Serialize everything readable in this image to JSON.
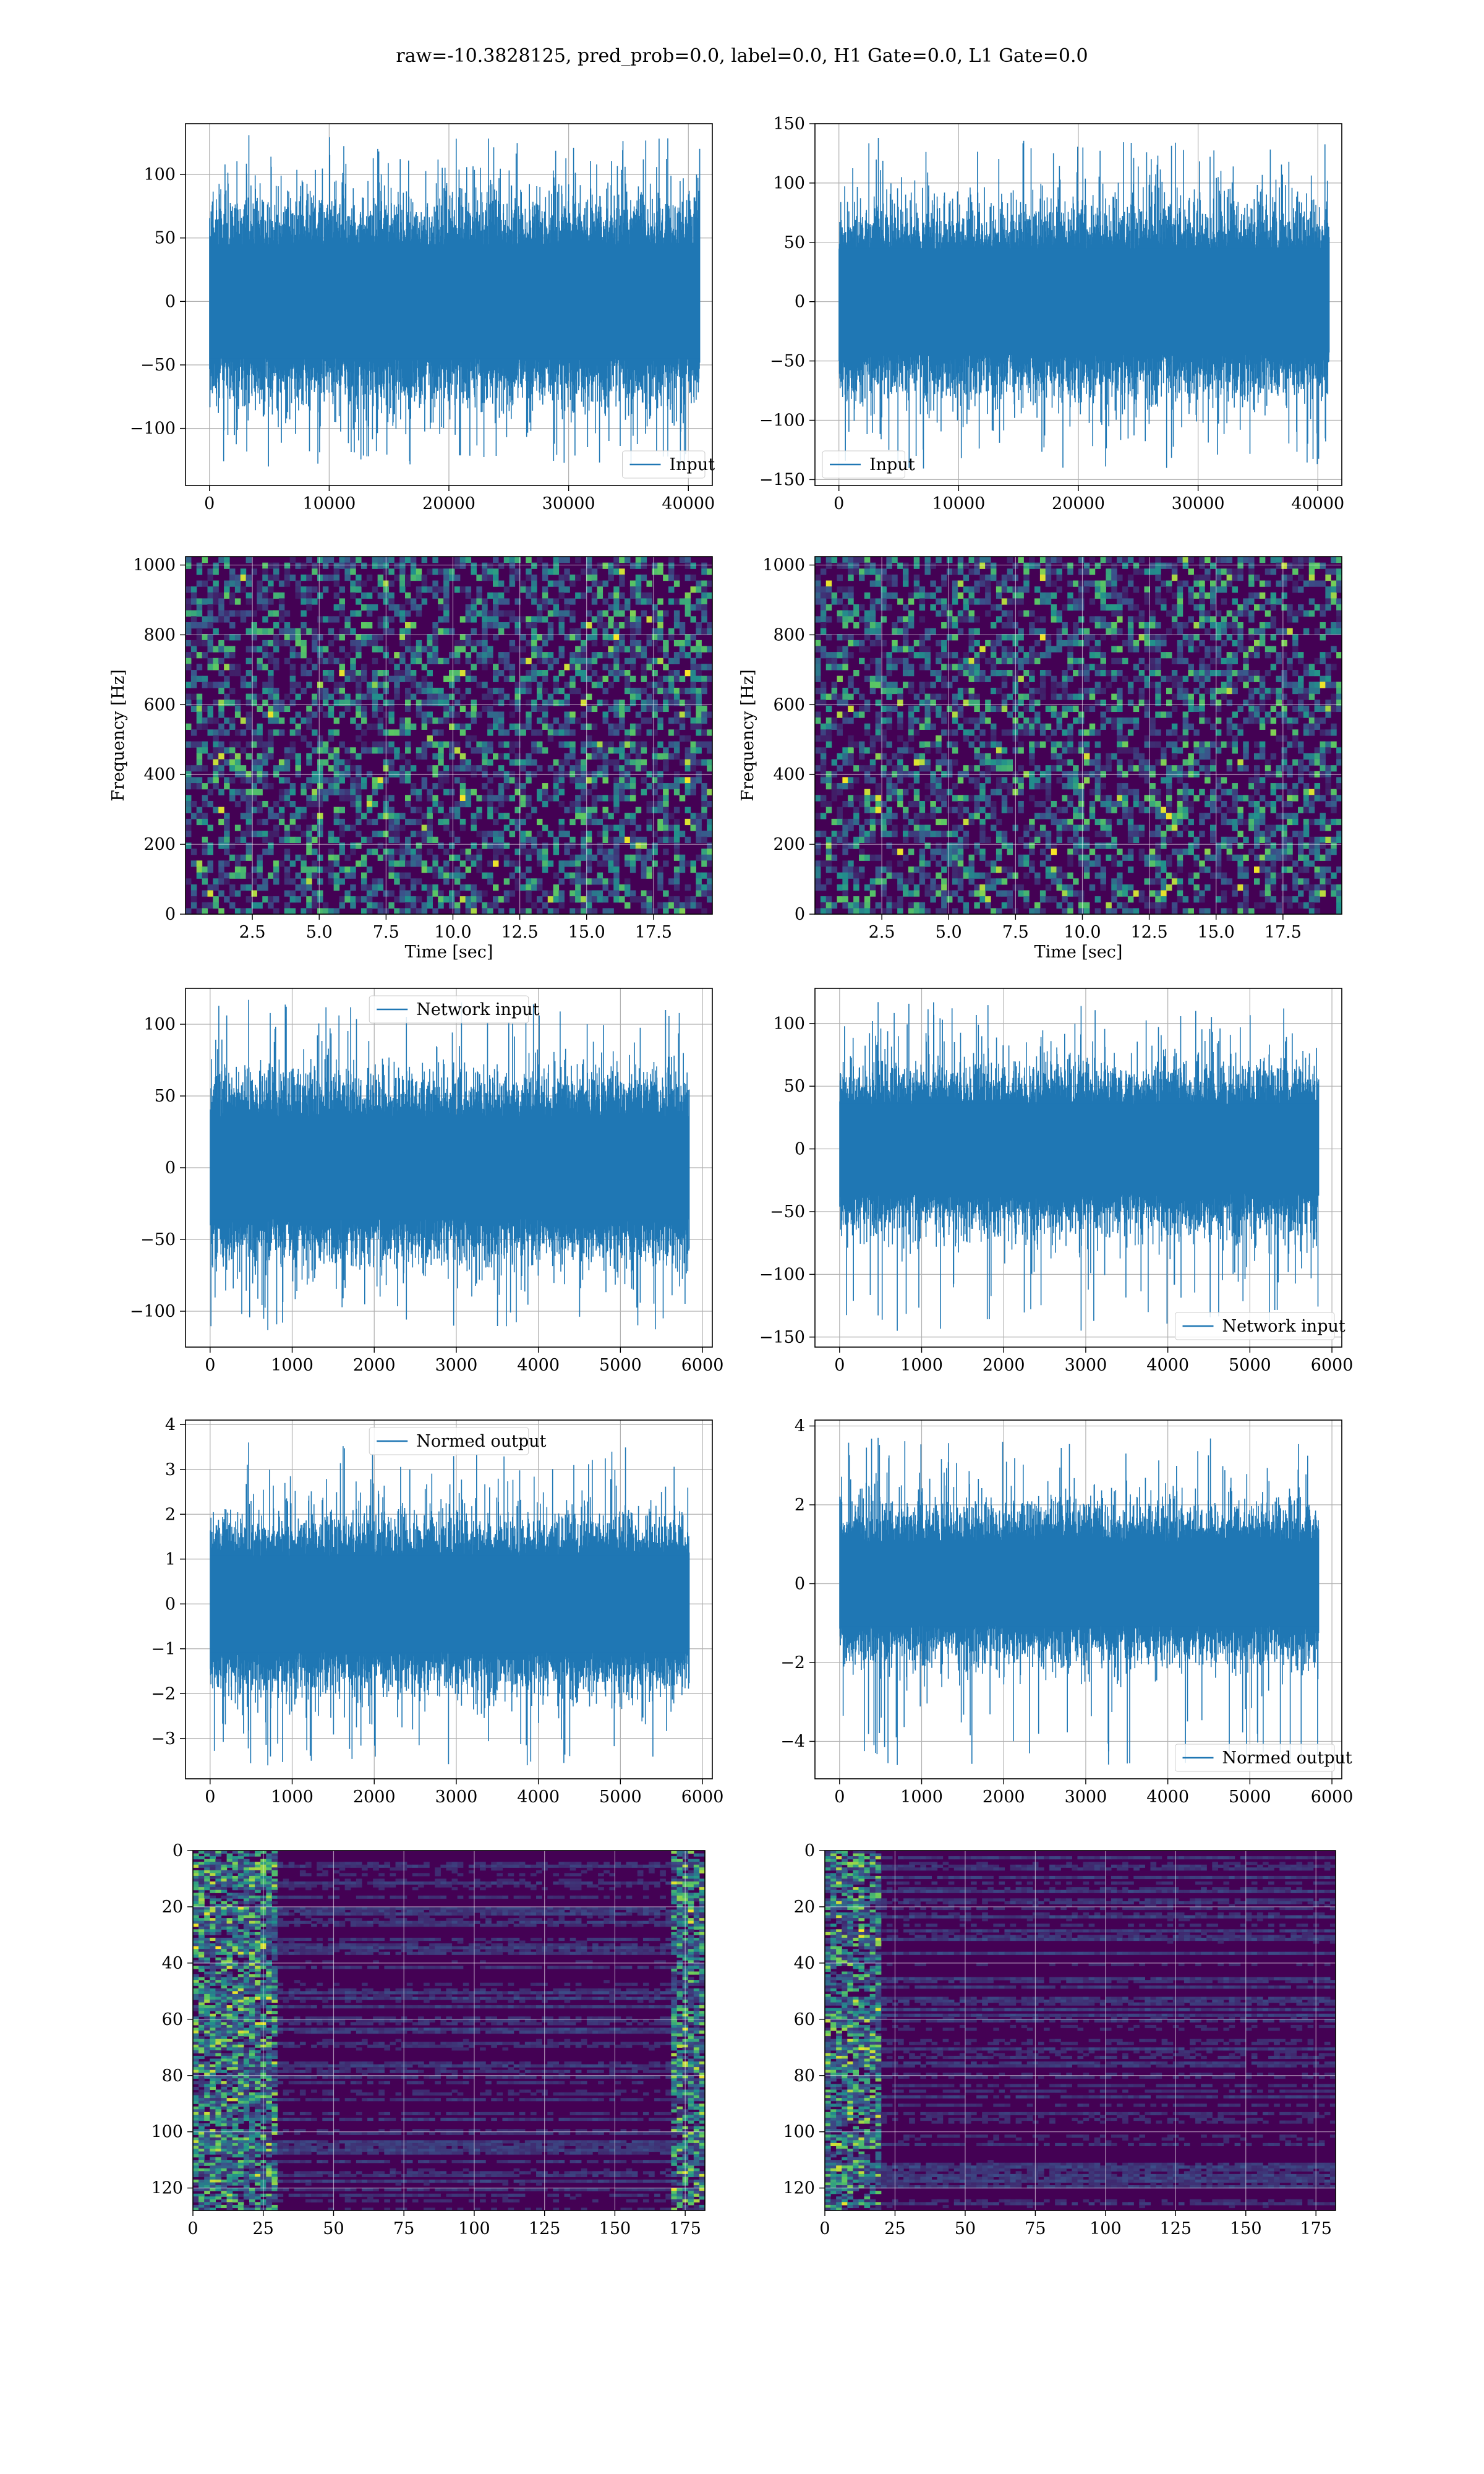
{
  "figure": {
    "suptitle": "raw=-10.3828125, pred_prob=0.0, label=0.0, H1 Gate=0.0, L1 Gate=0.0"
  },
  "colors": {
    "series": "#1f77b4",
    "grid": "#b0b0b0",
    "viridis_low": "#440154",
    "viridis_mid": "#21918c",
    "viridis_high": "#fde725"
  },
  "chart_data": [
    {
      "id": "r1c1",
      "type": "line",
      "title": "",
      "xlabel": "",
      "ylabel": "",
      "xlim": [
        -2000,
        42000
      ],
      "ylim": [
        -145,
        140
      ],
      "xticks": [
        0,
        10000,
        20000,
        30000,
        40000
      ],
      "yticks": [
        -100,
        -50,
        0,
        50,
        100
      ],
      "series": [
        {
          "name": "Input",
          "n_points": 40960,
          "x_range": [
            0,
            40960
          ],
          "typical_band": [
            -50,
            50
          ],
          "peak_max": 131,
          "peak_min": -130
        }
      ],
      "legend": "bottom-right",
      "grid": true
    },
    {
      "id": "r1c2",
      "type": "line",
      "title": "",
      "xlabel": "",
      "ylabel": "",
      "xlim": [
        -2000,
        42000
      ],
      "ylim": [
        -155,
        150
      ],
      "xticks": [
        0,
        10000,
        20000,
        30000,
        40000
      ],
      "yticks": [
        -150,
        -100,
        -50,
        0,
        50,
        100,
        150
      ],
      "series": [
        {
          "name": "Input",
          "n_points": 40960,
          "x_range": [
            0,
            40960
          ],
          "typical_band": [
            -50,
            50
          ],
          "peak_max": 138,
          "peak_min": -142
        }
      ],
      "legend": "bottom-left",
      "grid": true
    },
    {
      "id": "r2c1",
      "type": "heatmap",
      "title": "",
      "xlabel": "Time [sec]",
      "ylabel": "Frequency [Hz]",
      "xlim": [
        0.0,
        19.7
      ],
      "ylim": [
        0,
        1024
      ],
      "xticks": [
        2.5,
        5.0,
        7.5,
        10.0,
        12.5,
        15.0,
        17.5
      ],
      "yticks": [
        0,
        200,
        400,
        600,
        800,
        1000
      ],
      "colormap": "viridis",
      "dark_band_hz": [
        490,
        510
      ],
      "grid": true
    },
    {
      "id": "r2c2",
      "type": "heatmap",
      "title": "",
      "xlabel": "Time [sec]",
      "ylabel": "Frequency [Hz]",
      "xlim": [
        0.0,
        19.7
      ],
      "ylim": [
        0,
        1024
      ],
      "xticks": [
        2.5,
        5.0,
        7.5,
        10.0,
        12.5,
        15.0,
        17.5
      ],
      "yticks": [
        0,
        200,
        400,
        600,
        800,
        1000
      ],
      "colormap": "viridis",
      "dark_band_hz": [
        490,
        510
      ],
      "grid": true
    },
    {
      "id": "r3c1",
      "type": "line",
      "title": "",
      "xlabel": "",
      "ylabel": "",
      "xlim": [
        -300,
        6120
      ],
      "ylim": [
        -125,
        125
      ],
      "xticks": [
        0,
        1000,
        2000,
        3000,
        4000,
        5000,
        6000
      ],
      "yticks": [
        -100,
        -50,
        0,
        50,
        100
      ],
      "series": [
        {
          "name": "Network input",
          "n_points": 5840,
          "x_range": [
            0,
            5840
          ],
          "typical_band": [
            -40,
            40
          ],
          "peak_max": 117,
          "peak_min": -113
        }
      ],
      "legend": "top-center",
      "grid": true
    },
    {
      "id": "r3c2",
      "type": "line",
      "title": "",
      "xlabel": "",
      "ylabel": "",
      "xlim": [
        -300,
        6120
      ],
      "ylim": [
        -158,
        128
      ],
      "xticks": [
        0,
        1000,
        2000,
        3000,
        4000,
        5000,
        6000
      ],
      "yticks": [
        -150,
        -100,
        -50,
        0,
        50,
        100
      ],
      "series": [
        {
          "name": "Network input",
          "n_points": 5840,
          "x_range": [
            0,
            5840
          ],
          "typical_band": [
            -40,
            40
          ],
          "peak_max": 117,
          "peak_min": -145
        }
      ],
      "legend": "bottom-right",
      "grid": true
    },
    {
      "id": "r4c1",
      "type": "line",
      "title": "",
      "xlabel": "",
      "ylabel": "",
      "xlim": [
        -300,
        6120
      ],
      "ylim": [
        -3.9,
        4.1
      ],
      "xticks": [
        0,
        1000,
        2000,
        3000,
        4000,
        5000,
        6000
      ],
      "yticks": [
        -3,
        -2,
        -1,
        0,
        1,
        2,
        3,
        4
      ],
      "series": [
        {
          "name": "Normed output",
          "n_points": 5840,
          "x_range": [
            0,
            5840
          ],
          "typical_band": [
            -1.2,
            1.2
          ],
          "peak_max": 3.6,
          "peak_min": -3.6
        }
      ],
      "legend": "top-center",
      "grid": true
    },
    {
      "id": "r4c2",
      "type": "line",
      "title": "",
      "xlabel": "",
      "ylabel": "",
      "xlim": [
        -300,
        6120
      ],
      "ylim": [
        -4.95,
        4.15
      ],
      "xticks": [
        0,
        1000,
        2000,
        3000,
        4000,
        5000,
        6000
      ],
      "yticks": [
        -4,
        -2,
        0,
        2,
        4
      ],
      "series": [
        {
          "name": "Normed output",
          "n_points": 5840,
          "x_range": [
            0,
            5840
          ],
          "typical_band": [
            -1.2,
            1.2
          ],
          "peak_max": 3.7,
          "peak_min": -4.6
        }
      ],
      "legend": "bottom-right",
      "grid": true
    },
    {
      "id": "r5c1",
      "type": "heatmap",
      "title": "",
      "xlabel": "",
      "ylabel": "",
      "xlim": [
        0,
        182
      ],
      "ylim": [
        128,
        0
      ],
      "xticks": [
        0,
        25,
        50,
        75,
        100,
        125,
        150,
        175
      ],
      "yticks": [
        0,
        20,
        40,
        60,
        80,
        100,
        120
      ],
      "rows": 128,
      "cols": 182,
      "colormap": "viridis",
      "bright_columns": [
        [
          0,
          30
        ],
        [
          170,
          182
        ]
      ],
      "grid": true
    },
    {
      "id": "r5c2",
      "type": "heatmap",
      "title": "",
      "xlabel": "",
      "ylabel": "",
      "xlim": [
        0,
        182
      ],
      "ylim": [
        128,
        0
      ],
      "xticks": [
        0,
        25,
        50,
        75,
        100,
        125,
        150,
        175
      ],
      "yticks": [
        0,
        20,
        40,
        60,
        80,
        100,
        120
      ],
      "rows": 128,
      "cols": 182,
      "colormap": "viridis",
      "bright_columns": [
        [
          0,
          20
        ]
      ],
      "grid": true
    }
  ]
}
